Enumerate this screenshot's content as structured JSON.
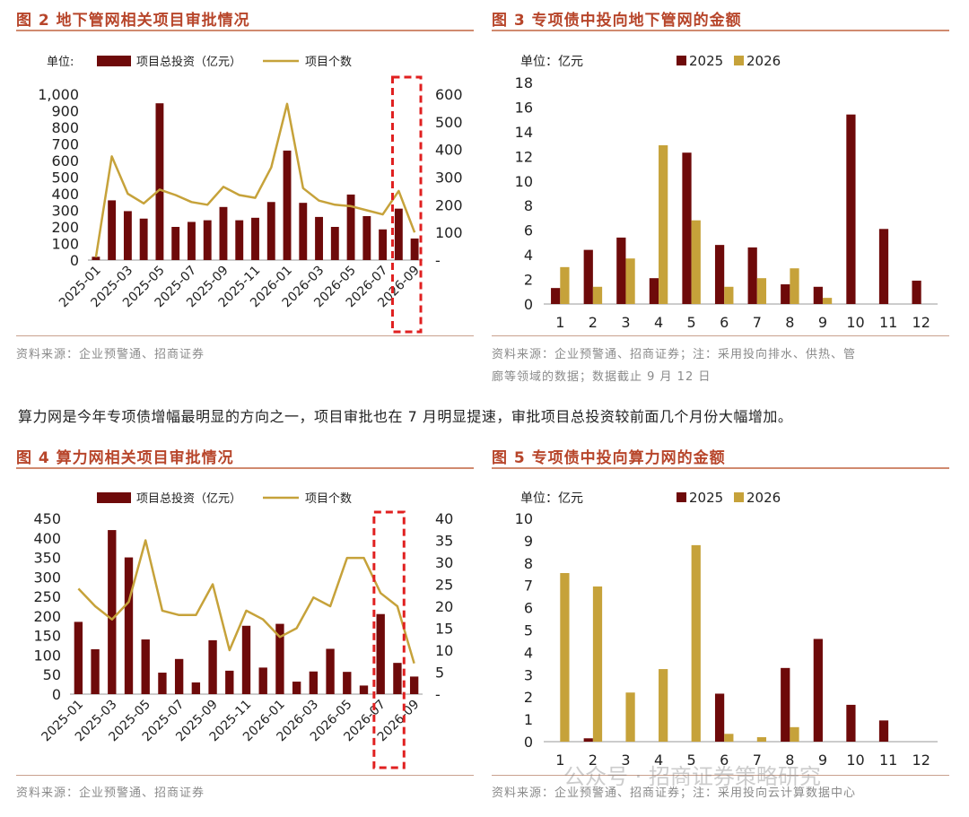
{
  "colors": {
    "bar2025": "#6e0a0a",
    "bar2026": "#c6a23a",
    "line": "#c6a23a",
    "title": "#b7452a",
    "highlight": "#e02020"
  },
  "paragraph": "算力网是今年专项债增幅最明显的方向之一，项目审批也在 7 月明显提速，审批项目总投资较前面几个月份大幅增加。",
  "watermark": "公众号 · 招商证券策略研究",
  "fig2": {
    "title": "图 2  地下管网相关项目审批情况",
    "source": "资料来源：企业预警通、招商证券",
    "unit": "单位:",
    "legend_bar": "项目总投资（亿元）",
    "legend_line": "项目个数"
  },
  "fig3": {
    "title": "图 3  专项债中投向地下管网的金额",
    "source_line1": "资料来源：企业预警通、招商证券；注：采用投向排水、供热、管",
    "source_line2": "廊等领域的数据；数据截止 9 月 12 日",
    "unit": "单位：亿元"
  },
  "fig4": {
    "title": "图 4  算力网相关项目审批情况",
    "source": "资料来源：企业预警通、招商证券",
    "legend_bar": "项目总投资（亿元）",
    "legend_line": "项目个数"
  },
  "fig5": {
    "title": "图 5  专项债中投向算力网的金额",
    "source": "资料来源：企业预警通、招商证券；注：采用投向云计算数据中心",
    "unit": "单位：亿元"
  },
  "chart_data": [
    {
      "id": "fig2",
      "type": "bar",
      "categories": [
        "2025-01",
        "2025-02",
        "2025-03",
        "2025-04",
        "2025-05",
        "2025-06",
        "2025-07",
        "2025-08",
        "2025-09",
        "2025-10",
        "2025-11",
        "2025-12",
        "2026-01",
        "2026-02",
        "2026-03",
        "2026-04",
        "2026-05",
        "2026-06",
        "2026-07",
        "2026-08",
        "2026-09"
      ],
      "tick_labels": [
        "2025-01",
        "2025-03",
        "2025-05",
        "2025-07",
        "2025-09",
        "2025-11",
        "2026-01",
        "2026-03",
        "2026-05",
        "2026-07",
        "2026-09"
      ],
      "series": [
        {
          "name": "项目总投资（亿元）",
          "type": "bar",
          "axis": "left",
          "values": [
            20,
            360,
            295,
            250,
            945,
            200,
            230,
            240,
            320,
            240,
            255,
            350,
            660,
            345,
            260,
            200,
            395,
            265,
            185,
            310,
            130
          ]
        },
        {
          "name": "项目个数",
          "type": "line",
          "axis": "right",
          "values": [
            10,
            375,
            240,
            205,
            255,
            235,
            210,
            200,
            265,
            235,
            225,
            335,
            565,
            260,
            215,
            200,
            195,
            180,
            165,
            250,
            100
          ]
        }
      ],
      "ylim_left": [
        0,
        1000
      ],
      "yticks_left": [
        "0",
        "100",
        "200",
        "300",
        "400",
        "500",
        "600",
        "700",
        "800",
        "900",
        "1,000"
      ],
      "ylim_right": [
        0,
        600
      ],
      "yticks_right": [
        "-",
        "100",
        "200",
        "300",
        "400",
        "500",
        "600"
      ],
      "highlight_range": [
        "2026-08",
        "2026-09"
      ]
    },
    {
      "id": "fig3",
      "type": "bar",
      "categories": [
        "1",
        "2",
        "3",
        "4",
        "5",
        "6",
        "7",
        "8",
        "9",
        "10",
        "11",
        "12"
      ],
      "series": [
        {
          "name": "2025",
          "values": [
            1.3,
            4.4,
            5.4,
            2.1,
            12.3,
            4.8,
            4.6,
            1.6,
            1.4,
            15.4,
            6.1,
            1.9
          ]
        },
        {
          "name": "2026",
          "values": [
            3.0,
            1.4,
            3.7,
            12.9,
            6.8,
            1.4,
            2.1,
            2.9,
            0.5,
            null,
            null,
            null
          ]
        }
      ],
      "ylim": [
        0,
        18
      ],
      "yticks": [
        "0",
        "2",
        "4",
        "6",
        "8",
        "10",
        "12",
        "14",
        "16",
        "18"
      ]
    },
    {
      "id": "fig4",
      "type": "bar",
      "categories": [
        "2025-01",
        "2025-02",
        "2025-03",
        "2025-04",
        "2025-05",
        "2025-06",
        "2025-07",
        "2025-08",
        "2025-09",
        "2025-10",
        "2025-11",
        "2025-12",
        "2026-01",
        "2026-02",
        "2026-03",
        "2026-04",
        "2026-05",
        "2026-06",
        "2026-07",
        "2026-08",
        "2026-09"
      ],
      "tick_labels": [
        "2025-01",
        "2025-03",
        "2025-05",
        "2025-07",
        "2025-09",
        "2025-11",
        "2026-01",
        "2026-03",
        "2026-05",
        "2026-07",
        "2026-09"
      ],
      "series": [
        {
          "name": "项目总投资（亿元）",
          "type": "bar",
          "axis": "left",
          "values": [
            185,
            115,
            420,
            350,
            140,
            55,
            90,
            30,
            138,
            60,
            175,
            68,
            180,
            32,
            58,
            116,
            57,
            22,
            205,
            80,
            45
          ]
        },
        {
          "name": "项目个数",
          "type": "line",
          "axis": "right",
          "values": [
            24,
            20,
            17,
            21,
            35,
            19,
            18,
            18,
            25,
            10,
            19,
            17,
            13,
            15,
            22,
            20,
            31,
            31,
            23,
            20,
            7
          ]
        }
      ],
      "ylim_left": [
        0,
        450
      ],
      "yticks_left": [
        "0",
        "50",
        "100",
        "150",
        "200",
        "250",
        "300",
        "350",
        "400",
        "450"
      ],
      "ylim_right": [
        0,
        40
      ],
      "yticks_right": [
        "-",
        "5",
        "10",
        "15",
        "20",
        "25",
        "30",
        "35",
        "40"
      ],
      "highlight_range": [
        "2026-07",
        "2026-08"
      ]
    },
    {
      "id": "fig5",
      "type": "bar",
      "categories": [
        "1",
        "2",
        "3",
        "4",
        "5",
        "6",
        "7",
        "8",
        "9",
        "10",
        "11",
        "12"
      ],
      "series": [
        {
          "name": "2025",
          "values": [
            null,
            0.15,
            null,
            null,
            null,
            2.15,
            null,
            3.3,
            4.6,
            1.65,
            0.95,
            null
          ]
        },
        {
          "name": "2026",
          "values": [
            7.55,
            6.95,
            2.2,
            3.25,
            8.8,
            0.35,
            0.2,
            0.65,
            null,
            null,
            null,
            null
          ]
        }
      ],
      "ylim": [
        0,
        10
      ],
      "yticks": [
        "0",
        "1",
        "2",
        "3",
        "4",
        "5",
        "6",
        "7",
        "8",
        "9",
        "10"
      ]
    }
  ]
}
